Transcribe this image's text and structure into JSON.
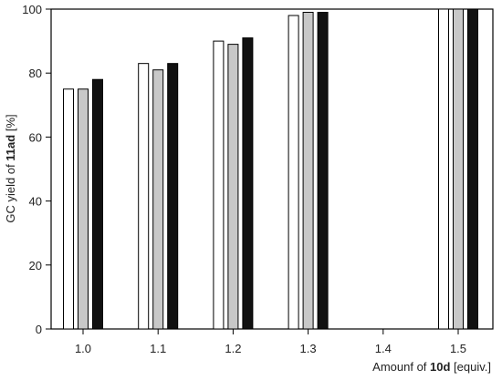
{
  "chart_data": {
    "type": "bar",
    "categories": [
      "1.0",
      "1.1",
      "1.2",
      "1.3",
      "1.4",
      "1.5"
    ],
    "series": [
      {
        "values": [
          75,
          83,
          90,
          98,
          null,
          100
        ],
        "color": "#ffffff"
      },
      {
        "values": [
          75,
          81,
          89,
          99,
          null,
          100
        ],
        "color": "#c8c8c8"
      },
      {
        "values": [
          78,
          83,
          91,
          99,
          null,
          100
        ],
        "color": "#111111"
      }
    ],
    "ylim": [
      0,
      100
    ],
    "yticks": [
      0,
      20,
      40,
      60,
      80,
      100
    ],
    "xlabel": {
      "prefix": "Amounf of ",
      "bold": "10d",
      "suffix": " [equiv.]"
    },
    "ylabel": {
      "prefix": "GC yield of ",
      "bold": "11ad",
      "suffix": " [%]"
    },
    "grid": false,
    "legend": "none"
  }
}
